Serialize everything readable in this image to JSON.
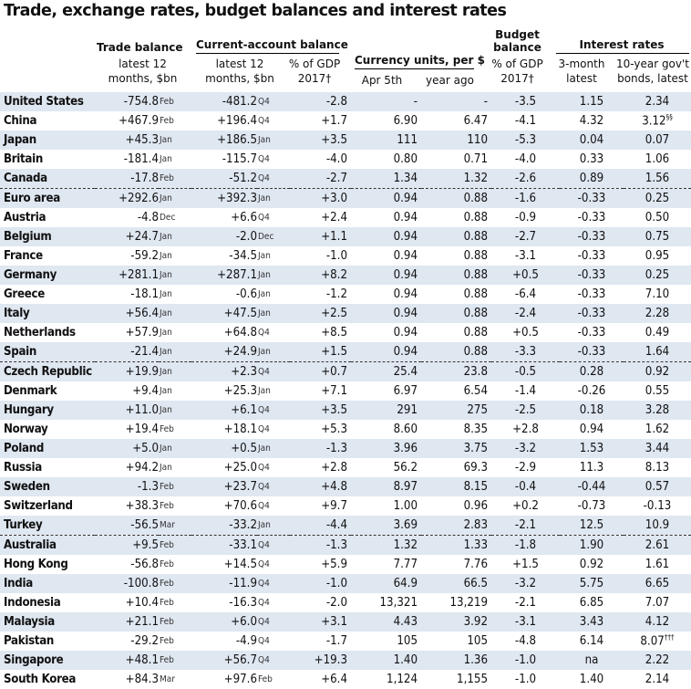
{
  "title": "Trade, exchange rates, budget balances and interest rates",
  "headers": {
    "trade_balance": "Trade balance",
    "trade_sub1": "latest 12",
    "trade_sub2": "months, $bn",
    "current_account": "Current-account balance",
    "ca_sub1": "latest 12",
    "ca_sub2": "months, $bn",
    "ca_gdp1": "% of GDP",
    "ca_gdp2": "2017†",
    "currency": "Currency units, per $",
    "cur_now": "Apr 5th",
    "cur_ago": "year ago",
    "budget1": "Budget",
    "budget2": "balance",
    "budget_gdp1": "% of GDP",
    "budget_gdp2": "2017†",
    "interest": "Interest rates",
    "ir_3m1": "3-month",
    "ir_3m2": "latest",
    "ir_10y1": "10-year gov't",
    "ir_10y2": "bonds, latest"
  },
  "rows": [
    {
      "country": "United States",
      "trade": "-754.8",
      "trade_period": "Feb",
      "ca": "-481.2",
      "ca_period": "Q4",
      "ca_gdp": "-2.8",
      "cur_now": "-",
      "cur_ago": "-",
      "budget": "-3.5",
      "ir3m": "1.15",
      "ir10y": "2.34",
      "note": ""
    },
    {
      "country": "China",
      "trade": "+467.9",
      "trade_period": "Feb",
      "ca": "+196.4",
      "ca_period": "Q4",
      "ca_gdp": "+1.7",
      "cur_now": "6.90",
      "cur_ago": "6.47",
      "budget": "-4.1",
      "ir3m": "4.32",
      "ir10y": "3.12",
      "note": "§§"
    },
    {
      "country": "Japan",
      "trade": "+45.3",
      "trade_period": "Jan",
      "ca": "+186.5",
      "ca_period": "Jan",
      "ca_gdp": "+3.5",
      "cur_now": "111",
      "cur_ago": "110",
      "budget": "-5.3",
      "ir3m": "0.04",
      "ir10y": "0.07",
      "note": ""
    },
    {
      "country": "Britain",
      "trade": "-181.4",
      "trade_period": "Jan",
      "ca": "-115.7",
      "ca_period": "Q4",
      "ca_gdp": "-4.0",
      "cur_now": "0.80",
      "cur_ago": "0.71",
      "budget": "-4.0",
      "ir3m": "0.33",
      "ir10y": "1.06",
      "note": ""
    },
    {
      "country": "Canada",
      "trade": "-17.8",
      "trade_period": "Feb",
      "ca": "-51.2",
      "ca_period": "Q4",
      "ca_gdp": "-2.7",
      "cur_now": "1.34",
      "cur_ago": "1.32",
      "budget": "-2.6",
      "ir3m": "0.89",
      "ir10y": "1.56",
      "note": ""
    },
    {
      "country": "Euro area",
      "trade": "+292.6",
      "trade_period": "Jan",
      "ca": "+392.3",
      "ca_period": "Jan",
      "ca_gdp": "+3.0",
      "cur_now": "0.94",
      "cur_ago": "0.88",
      "budget": "-1.6",
      "ir3m": "-0.33",
      "ir10y": "0.25",
      "note": ""
    },
    {
      "country": "Austria",
      "trade": "-4.8",
      "trade_period": "Dec",
      "ca": "+6.6",
      "ca_period": "Q4",
      "ca_gdp": "+2.4",
      "cur_now": "0.94",
      "cur_ago": "0.88",
      "budget": "-0.9",
      "ir3m": "-0.33",
      "ir10y": "0.50",
      "note": ""
    },
    {
      "country": "Belgium",
      "trade": "+24.7",
      "trade_period": "Jan",
      "ca": "-2.0",
      "ca_period": "Dec",
      "ca_gdp": "+1.1",
      "cur_now": "0.94",
      "cur_ago": "0.88",
      "budget": "-2.7",
      "ir3m": "-0.33",
      "ir10y": "0.75",
      "note": ""
    },
    {
      "country": "France",
      "trade": "-59.2",
      "trade_period": "Jan",
      "ca": "-34.5",
      "ca_period": "Jan",
      "ca_gdp": "-1.0",
      "cur_now": "0.94",
      "cur_ago": "0.88",
      "budget": "-3.1",
      "ir3m": "-0.33",
      "ir10y": "0.95",
      "note": ""
    },
    {
      "country": "Germany",
      "trade": "+281.1",
      "trade_period": "Jan",
      "ca": "+287.1",
      "ca_period": "Jan",
      "ca_gdp": "+8.2",
      "cur_now": "0.94",
      "cur_ago": "0.88",
      "budget": "+0.5",
      "ir3m": "-0.33",
      "ir10y": "0.25",
      "note": ""
    },
    {
      "country": "Greece",
      "trade": "-18.1",
      "trade_period": "Jan",
      "ca": "-0.6",
      "ca_period": "Jan",
      "ca_gdp": "-1.2",
      "cur_now": "0.94",
      "cur_ago": "0.88",
      "budget": "-6.4",
      "ir3m": "-0.33",
      "ir10y": "7.10",
      "note": ""
    },
    {
      "country": "Italy",
      "trade": "+56.4",
      "trade_period": "Jan",
      "ca": "+47.5",
      "ca_period": "Jan",
      "ca_gdp": "+2.5",
      "cur_now": "0.94",
      "cur_ago": "0.88",
      "budget": "-2.4",
      "ir3m": "-0.33",
      "ir10y": "2.28",
      "note": ""
    },
    {
      "country": "Netherlands",
      "trade": "+57.9",
      "trade_period": "Jan",
      "ca": "+64.8",
      "ca_period": "Q4",
      "ca_gdp": "+8.5",
      "cur_now": "0.94",
      "cur_ago": "0.88",
      "budget": "+0.5",
      "ir3m": "-0.33",
      "ir10y": "0.49",
      "note": ""
    },
    {
      "country": "Spain",
      "trade": "-21.4",
      "trade_period": "Jan",
      "ca": "+24.9",
      "ca_period": "Jan",
      "ca_gdp": "+1.5",
      "cur_now": "0.94",
      "cur_ago": "0.88",
      "budget": "-3.3",
      "ir3m": "-0.33",
      "ir10y": "1.64",
      "note": ""
    },
    {
      "country": "Czech Republic",
      "trade": "+19.9",
      "trade_period": "Jan",
      "ca": "+2.3",
      "ca_period": "Q4",
      "ca_gdp": "+0.7",
      "cur_now": "25.4",
      "cur_ago": "23.8",
      "budget": "-0.5",
      "ir3m": "0.28",
      "ir10y": "0.92",
      "note": ""
    },
    {
      "country": "Denmark",
      "trade": "+9.4",
      "trade_period": "Jan",
      "ca": "+25.3",
      "ca_period": "Jan",
      "ca_gdp": "+7.1",
      "cur_now": "6.97",
      "cur_ago": "6.54",
      "budget": "-1.4",
      "ir3m": "-0.26",
      "ir10y": "0.55",
      "note": ""
    },
    {
      "country": "Hungary",
      "trade": "+11.0",
      "trade_period": "Jan",
      "ca": "+6.1",
      "ca_period": "Q4",
      "ca_gdp": "+3.5",
      "cur_now": "291",
      "cur_ago": "275",
      "budget": "-2.5",
      "ir3m": "0.18",
      "ir10y": "3.28",
      "note": ""
    },
    {
      "country": "Norway",
      "trade": "+19.4",
      "trade_period": "Feb",
      "ca": "+18.1",
      "ca_period": "Q4",
      "ca_gdp": "+5.3",
      "cur_now": "8.60",
      "cur_ago": "8.35",
      "budget": "+2.8",
      "ir3m": "0.94",
      "ir10y": "1.62",
      "note": ""
    },
    {
      "country": "Poland",
      "trade": "+5.0",
      "trade_period": "Jan",
      "ca": "+0.5",
      "ca_period": "Jan",
      "ca_gdp": "-1.3",
      "cur_now": "3.96",
      "cur_ago": "3.75",
      "budget": "-3.2",
      "ir3m": "1.53",
      "ir10y": "3.44",
      "note": ""
    },
    {
      "country": "Russia",
      "trade": "+94.2",
      "trade_period": "Jan",
      "ca": "+25.0",
      "ca_period": "Q4",
      "ca_gdp": "+2.8",
      "cur_now": "56.2",
      "cur_ago": "69.3",
      "budget": "-2.9",
      "ir3m": "11.3",
      "ir10y": "8.13",
      "note": ""
    },
    {
      "country": "Sweden",
      "trade": "-1.3",
      "trade_period": "Feb",
      "ca": "+23.7",
      "ca_period": "Q4",
      "ca_gdp": "+4.8",
      "cur_now": "8.97",
      "cur_ago": "8.15",
      "budget": "-0.4",
      "ir3m": "-0.44",
      "ir10y": "0.57",
      "note": ""
    },
    {
      "country": "Switzerland",
      "trade": "+38.3",
      "trade_period": "Feb",
      "ca": "+70.6",
      "ca_period": "Q4",
      "ca_gdp": "+9.7",
      "cur_now": "1.00",
      "cur_ago": "0.96",
      "budget": "+0.2",
      "ir3m": "-0.73",
      "ir10y": "-0.13",
      "note": ""
    },
    {
      "country": "Turkey",
      "trade": "-56.5",
      "trade_period": "Mar",
      "ca": "-33.2",
      "ca_period": "Jan",
      "ca_gdp": "-4.4",
      "cur_now": "3.69",
      "cur_ago": "2.83",
      "budget": "-2.1",
      "ir3m": "12.5",
      "ir10y": "10.9",
      "note": ""
    },
    {
      "country": "Australia",
      "trade": "+9.5",
      "trade_period": "Feb",
      "ca": "-33.1",
      "ca_period": "Q4",
      "ca_gdp": "-1.3",
      "cur_now": "1.32",
      "cur_ago": "1.33",
      "budget": "-1.8",
      "ir3m": "1.90",
      "ir10y": "2.61",
      "note": ""
    },
    {
      "country": "Hong Kong",
      "trade": "-56.8",
      "trade_period": "Feb",
      "ca": "+14.5",
      "ca_period": "Q4",
      "ca_gdp": "+5.9",
      "cur_now": "7.77",
      "cur_ago": "7.76",
      "budget": "+1.5",
      "ir3m": "0.92",
      "ir10y": "1.61",
      "note": ""
    },
    {
      "country": "India",
      "trade": "-100.8",
      "trade_period": "Feb",
      "ca": "-11.9",
      "ca_period": "Q4",
      "ca_gdp": "-1.0",
      "cur_now": "64.9",
      "cur_ago": "66.5",
      "budget": "-3.2",
      "ir3m": "5.75",
      "ir10y": "6.65",
      "note": ""
    },
    {
      "country": "Indonesia",
      "trade": "+10.4",
      "trade_period": "Feb",
      "ca": "-16.3",
      "ca_period": "Q4",
      "ca_gdp": "-2.0",
      "cur_now": "13,321",
      "cur_ago": "13,219",
      "budget": "-2.1",
      "ir3m": "6.85",
      "ir10y": "7.07",
      "note": ""
    },
    {
      "country": "Malaysia",
      "trade": "+21.1",
      "trade_period": "Feb",
      "ca": "+6.0",
      "ca_period": "Q4",
      "ca_gdp": "+3.1",
      "cur_now": "4.43",
      "cur_ago": "3.92",
      "budget": "-3.1",
      "ir3m": "3.43",
      "ir10y": "4.12",
      "note": ""
    },
    {
      "country": "Pakistan",
      "trade": "-29.2",
      "trade_period": "Feb",
      "ca": "-4.9",
      "ca_period": "Q4",
      "ca_gdp": "-1.7",
      "cur_now": "105",
      "cur_ago": "105",
      "budget": "-4.8",
      "ir3m": "6.14",
      "ir10y": "8.07",
      "note": "†††"
    },
    {
      "country": "Singapore",
      "trade": "+48.1",
      "trade_period": "Feb",
      "ca": "+56.7",
      "ca_period": "Q4",
      "ca_gdp": "+19.3",
      "cur_now": "1.40",
      "cur_ago": "1.36",
      "budget": "-1.0",
      "ir3m": "na",
      "ir10y": "2.22",
      "note": ""
    },
    {
      "country": "South Korea",
      "trade": "+84.3",
      "trade_period": "Mar",
      "ca": "+97.6",
      "ca_period": "Feb",
      "ca_gdp": "+6.4",
      "cur_now": "1,124",
      "cur_ago": "1,155",
      "budget": "-1.0",
      "ir3m": "1.40",
      "ir10y": "2.14",
      "note": ""
    }
  ]
}
